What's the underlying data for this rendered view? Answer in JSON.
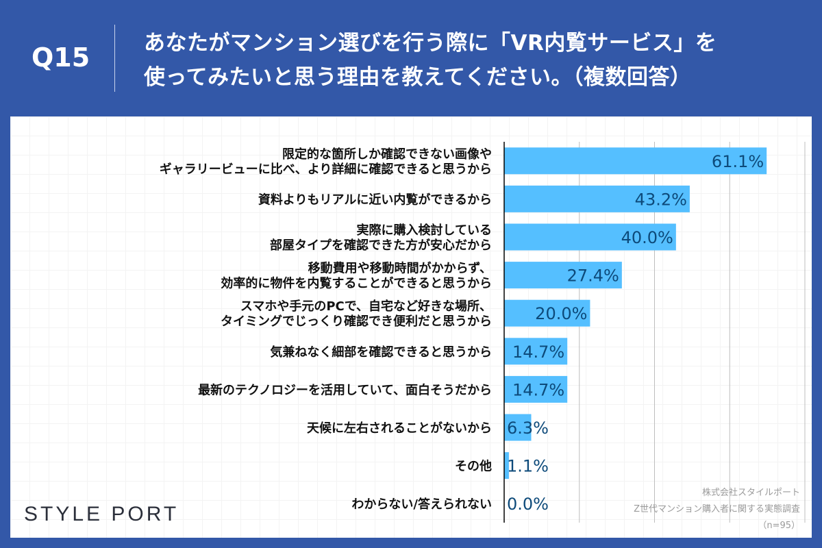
{
  "header": {
    "question_no": "Q15",
    "title_line1": "あなたがマンション選びを行う際に「VR内覧サービス」を",
    "title_line2": "使ってみたいと思う理由を教えてください。（複数回答）"
  },
  "footer": {
    "logo": "STYLE PORT",
    "source_line1": "株式会社スタイルポート",
    "source_line2": "Z世代マンション購入者に関する実態調査",
    "source_line3": "（n=95）"
  },
  "chart_data": {
    "type": "bar",
    "orientation": "horizontal",
    "xlim": [
      0,
      70
    ],
    "grid": true,
    "bar_color": "#55bfff",
    "label_color": "#0d4a7a",
    "categories": [
      [
        "限定的な箇所しか確認できない画像や",
        "ギャラリービューに比べ、より詳細に確認できると思うから"
      ],
      [
        "資料よりもリアルに近い内覧ができるから"
      ],
      [
        "実際に購入検討している",
        "部屋タイプを確認できた方が安心だから"
      ],
      [
        "移動費用や移動時間がかからず、",
        "効率的に物件を内覧することができると思うから"
      ],
      [
        "スマホや手元のPCで、自宅など好きな場所、",
        "タイミングでじっくり確認でき便利だと思うから"
      ],
      [
        "気兼ねなく細部を確認できると思うから"
      ],
      [
        "最新のテクノロジーを活用していて、面白そうだから"
      ],
      [
        "天候に左右されることがないから"
      ],
      [
        "その他"
      ],
      [
        "わからない/答えられない"
      ]
    ],
    "values": [
      61.1,
      43.2,
      40.0,
      27.4,
      20.0,
      14.7,
      14.7,
      6.3,
      1.1,
      0.0
    ],
    "data_labels": [
      "61.1%",
      "43.2%",
      "40.0%",
      "27.4%",
      "20.0%",
      "14.7%",
      "14.7%",
      "6.3%",
      "1.1%",
      "0.0%"
    ]
  }
}
